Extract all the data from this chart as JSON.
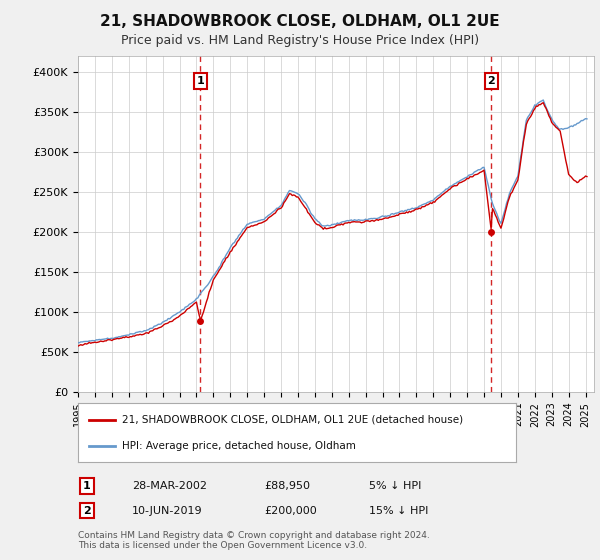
{
  "title": "21, SHADOWBROOK CLOSE, OLDHAM, OL1 2UE",
  "subtitle": "Price paid vs. HM Land Registry's House Price Index (HPI)",
  "ylabel_ticks": [
    "£0",
    "£50K",
    "£100K",
    "£150K",
    "£200K",
    "£250K",
    "£300K",
    "£350K",
    "£400K"
  ],
  "ytick_vals": [
    0,
    50000,
    100000,
    150000,
    200000,
    250000,
    300000,
    350000,
    400000
  ],
  "ylim": [
    0,
    420000
  ],
  "xlim_start": 1995.0,
  "xlim_end": 2025.5,
  "bg_color": "#f0f0f0",
  "plot_bg_color": "#ffffff",
  "grid_color": "#cccccc",
  "line_color_red": "#cc0000",
  "line_color_blue": "#6699cc",
  "vline_color": "#cc0000",
  "marker_color_red": "#cc0000",
  "transaction1": {
    "date": 2002.24,
    "price": 88950,
    "label": "1"
  },
  "transaction2": {
    "date": 2019.44,
    "price": 200000,
    "label": "2"
  },
  "legend_label_red": "21, SHADOWBROOK CLOSE, OLDHAM, OL1 2UE (detached house)",
  "legend_label_blue": "HPI: Average price, detached house, Oldham",
  "table_row1": [
    "1",
    "28-MAR-2002",
    "£88,950",
    "5% ↓ HPI"
  ],
  "table_row2": [
    "2",
    "10-JUN-2019",
    "£200,000",
    "15% ↓ HPI"
  ],
  "footer": "Contains HM Land Registry data © Crown copyright and database right 2024.\nThis data is licensed under the Open Government Licence v3.0."
}
